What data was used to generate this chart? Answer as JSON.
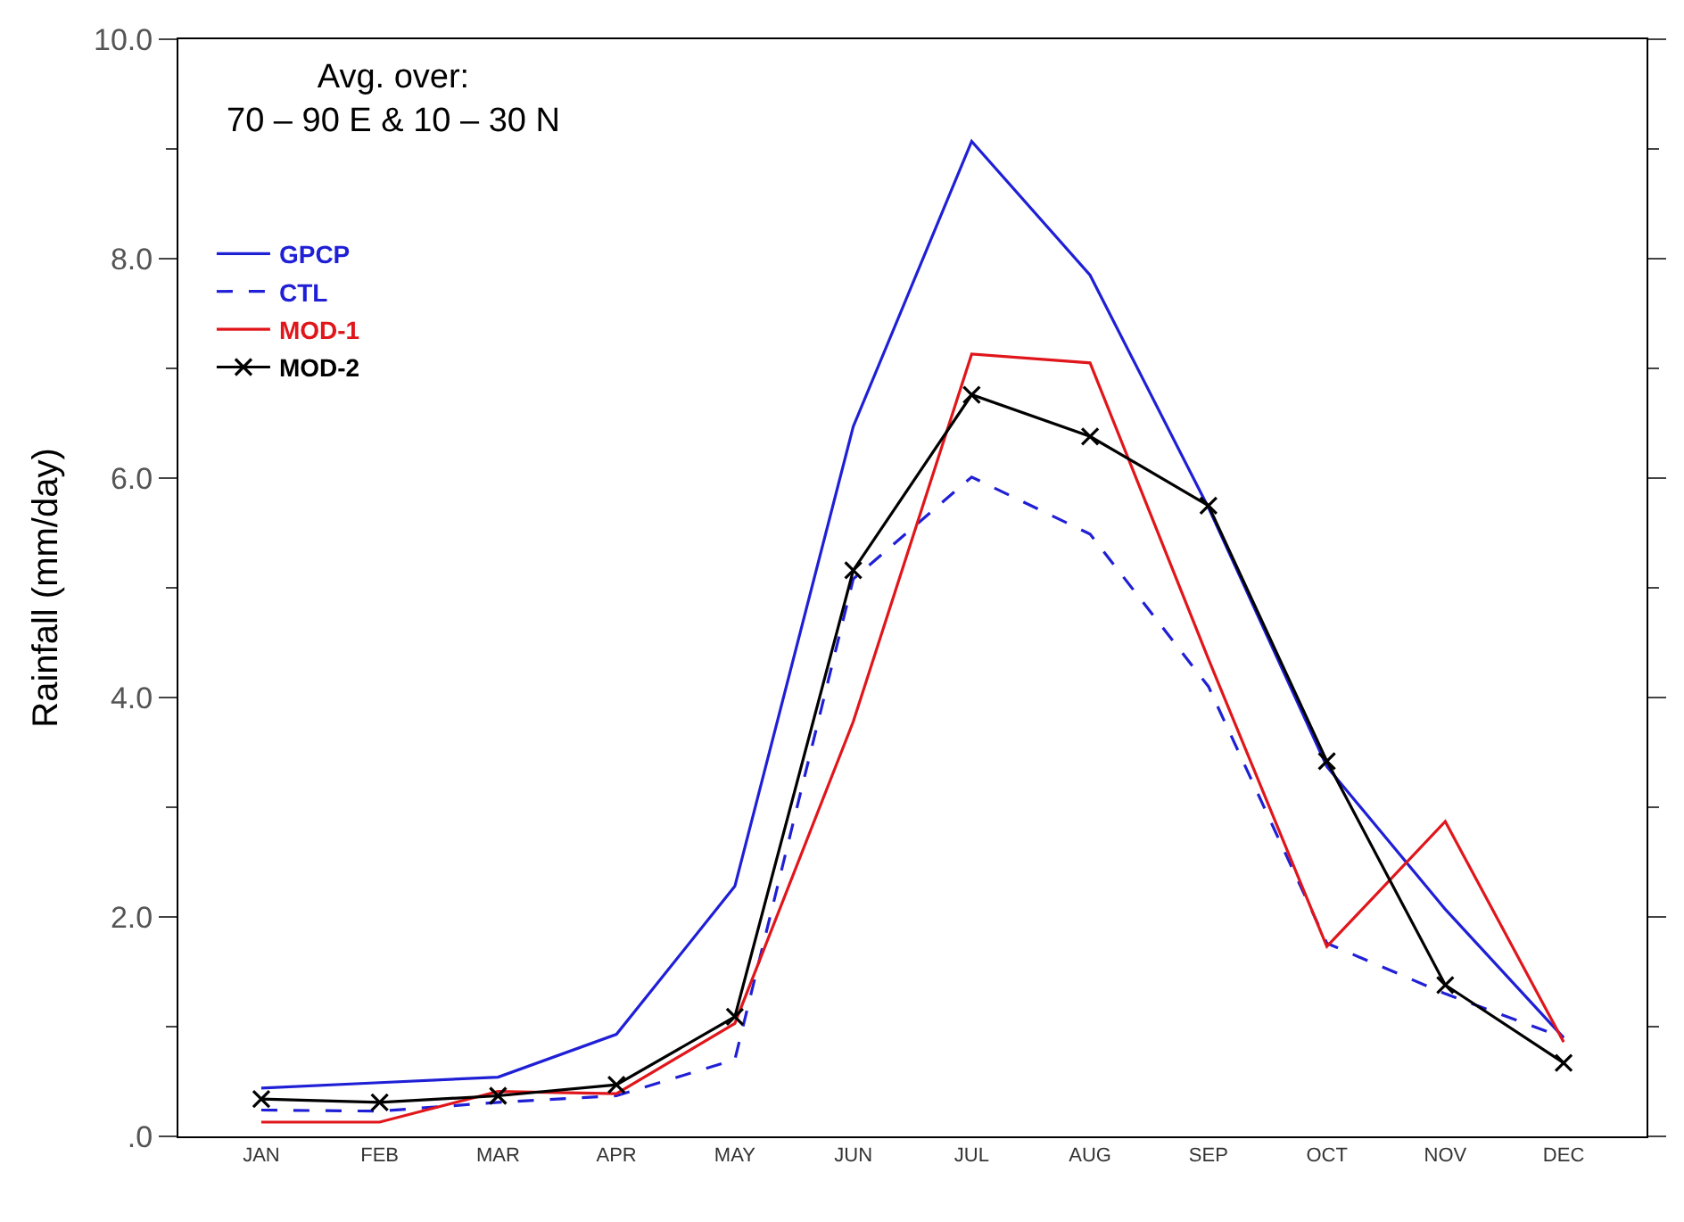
{
  "chart_data": {
    "type": "line",
    "ylabel": "Rainfall (mm/day)",
    "categories": [
      "JAN",
      "FEB",
      "MAR",
      "APR",
      "MAY",
      "JUN",
      "JUL",
      "AUG",
      "SEP",
      "OCT",
      "NOV",
      "DEC"
    ],
    "ylim": [
      0,
      10
    ],
    "yticks": [
      {
        "value": 0,
        "label": ".0"
      },
      {
        "value": 2,
        "label": "2.0"
      },
      {
        "value": 4,
        "label": "4.0"
      },
      {
        "value": 6,
        "label": "6.0"
      },
      {
        "value": 8,
        "label": "8.0"
      },
      {
        "value": 10,
        "label": "10.0"
      }
    ],
    "grid": false,
    "legend": "top left",
    "annotations": [
      "Avg. over:\n70 – 90 E & 10 – 30 N"
    ],
    "series": [
      {
        "name": "GPCP",
        "color": "#1f1fd6",
        "line_style": "solid",
        "marker": "none",
        "values": [
          0.44,
          0.49,
          0.54,
          0.93,
          2.28,
          6.47,
          9.07,
          7.85,
          5.73,
          3.37,
          2.07,
          0.9
        ]
      },
      {
        "name": "CTL",
        "color": "#1f1fd6",
        "line_style": "dashed",
        "marker": "none",
        "values": [
          0.24,
          0.23,
          0.31,
          0.37,
          0.7,
          5.08,
          6.01,
          5.49,
          4.1,
          1.76,
          1.3,
          0.9
        ]
      },
      {
        "name": "MOD-1",
        "color": "#e0161b",
        "line_style": "solid",
        "marker": "none",
        "values": [
          0.13,
          0.13,
          0.41,
          0.39,
          1.03,
          3.78,
          7.13,
          7.05,
          4.35,
          1.73,
          2.87,
          0.86
        ]
      },
      {
        "name": "MOD-2",
        "color": "#000000",
        "line_style": "solid",
        "marker": "cross",
        "values": [
          0.34,
          0.31,
          0.37,
          0.47,
          1.09,
          5.16,
          6.76,
          6.38,
          5.75,
          3.42,
          1.38,
          0.67
        ]
      }
    ]
  }
}
